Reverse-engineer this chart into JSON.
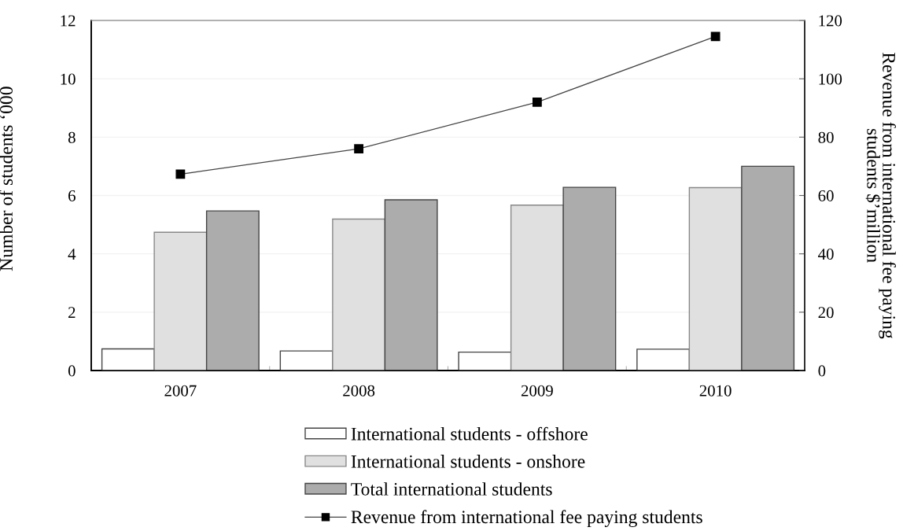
{
  "chart_data": {
    "type": "bar",
    "categories": [
      "2007",
      "2008",
      "2009",
      "2010"
    ],
    "series": [
      {
        "name": "International students - offshore",
        "color": "#ffffff",
        "values": [
          0.74,
          0.67,
          0.63,
          0.73
        ]
      },
      {
        "name": "International students - onshore",
        "color": "#e0e0e0",
        "values": [
          4.74,
          5.19,
          5.67,
          6.27
        ]
      },
      {
        "name": "Total international students",
        "color": "#acacac",
        "values": [
          5.47,
          5.85,
          6.28,
          7.0
        ]
      },
      {
        "name": "Revenue from international fee paying students",
        "type": "line",
        "axis": "y2",
        "color": "#000000",
        "marker": "square",
        "values": [
          67.3,
          76,
          92,
          114.5
        ]
      }
    ],
    "ylabel": "Number of students ‘000",
    "y2label": "Revenue from international fee paying\nstudents $’million",
    "ylim": [
      0,
      12
    ],
    "yticks": [
      0,
      2,
      4,
      6,
      8,
      10,
      12
    ],
    "y2lim": [
      0,
      120
    ],
    "y2ticks": [
      0,
      20,
      40,
      60,
      80,
      100,
      120
    ],
    "grid": "y",
    "legend": "bottom"
  }
}
